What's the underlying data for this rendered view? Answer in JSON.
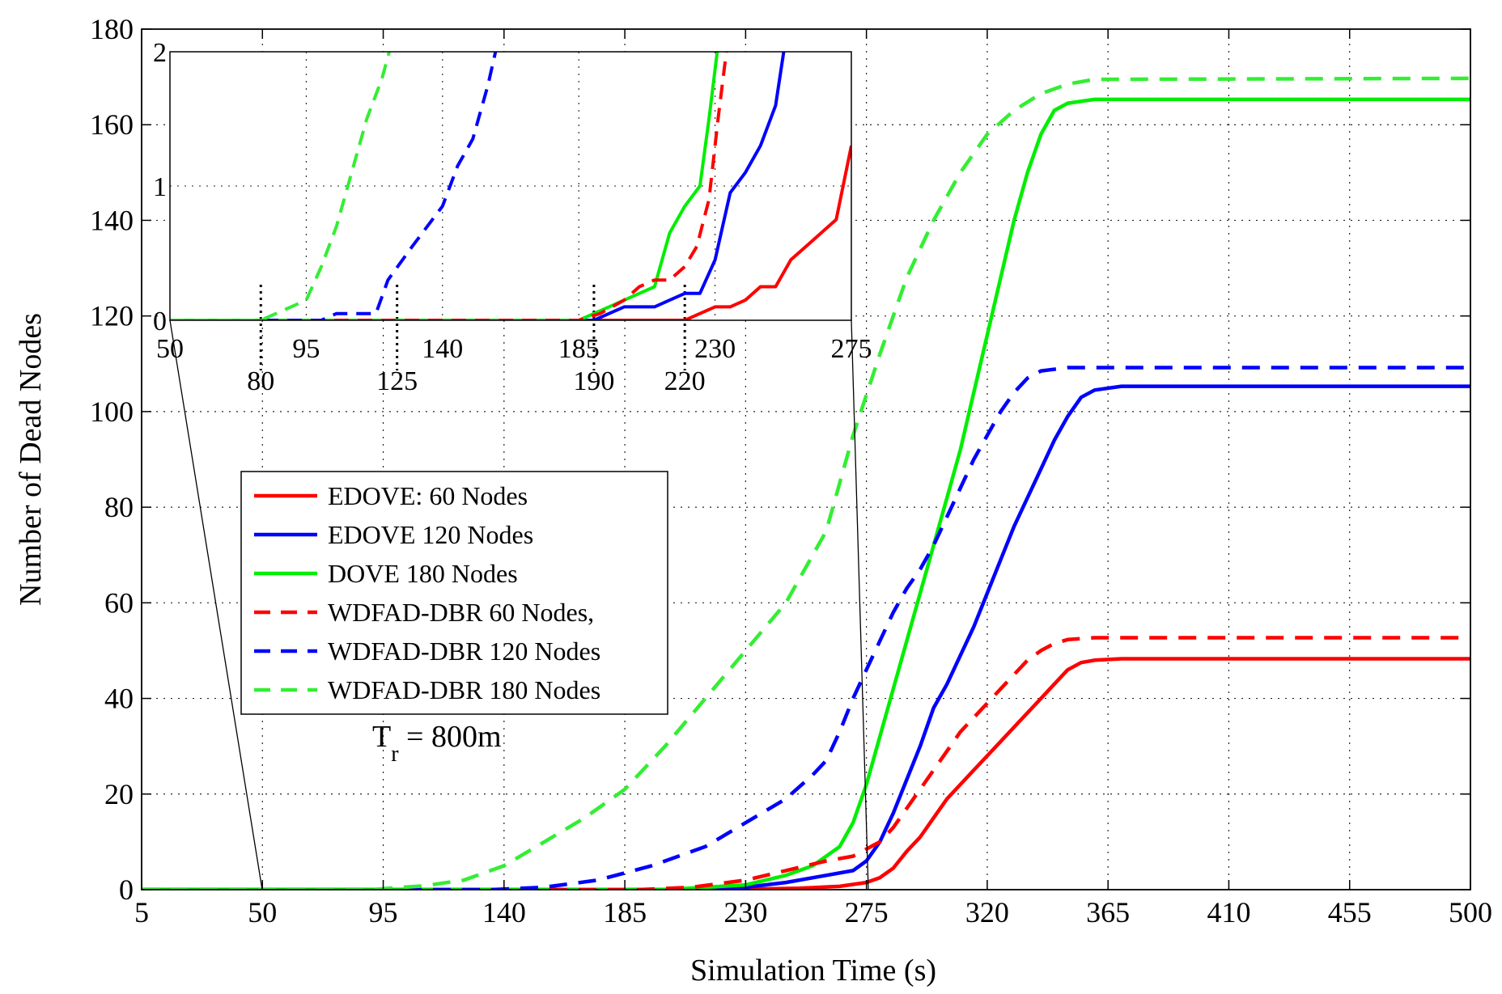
{
  "chart_data": {
    "type": "line",
    "title": "",
    "xlabel": "Simulation Time (s)",
    "ylabel": "Number of Dead Nodes",
    "xlim": [
      5,
      500
    ],
    "ylim": [
      0,
      180
    ],
    "xticks": [
      "5",
      "50",
      "95",
      "140",
      "185",
      "230",
      "275",
      "320",
      "365",
      "410",
      "455",
      "500"
    ],
    "yticks": [
      "0",
      "20",
      "40",
      "60",
      "80",
      "100",
      "120",
      "140",
      "160",
      "180"
    ],
    "grid": true,
    "legend_position": "center-left",
    "annotation": {
      "main": "T",
      "sub": "r",
      "rest": " = 800m"
    },
    "series": [
      {
        "name": "EDOVE: 60 Nodes",
        "color": "#ff0000",
        "dash": "solid",
        "points": [
          [
            5,
            0
          ],
          [
            220,
            0
          ],
          [
            250,
            0.3
          ],
          [
            265,
            0.7
          ],
          [
            275,
            1.5
          ],
          [
            280,
            2.5
          ],
          [
            285,
            4.5
          ],
          [
            290,
            8
          ],
          [
            295,
            11
          ],
          [
            300,
            15
          ],
          [
            305,
            19
          ],
          [
            310,
            22
          ],
          [
            315,
            25
          ],
          [
            320,
            28
          ],
          [
            325,
            31
          ],
          [
            330,
            34
          ],
          [
            335,
            37
          ],
          [
            340,
            40
          ],
          [
            345,
            43
          ],
          [
            350,
            46
          ],
          [
            355,
            47.5
          ],
          [
            360,
            48
          ],
          [
            370,
            48.3
          ],
          [
            500,
            48.3
          ]
        ]
      },
      {
        "name": "EDOVE 120 Nodes",
        "color": "#0000ff",
        "dash": "solid",
        "points": [
          [
            5,
            0
          ],
          [
            215,
            0
          ],
          [
            230,
            0.5
          ],
          [
            245,
            1.5
          ],
          [
            260,
            3
          ],
          [
            270,
            4
          ],
          [
            275,
            6
          ],
          [
            280,
            10
          ],
          [
            285,
            16
          ],
          [
            290,
            23
          ],
          [
            295,
            30
          ],
          [
            300,
            38
          ],
          [
            305,
            43
          ],
          [
            310,
            49
          ],
          [
            315,
            55
          ],
          [
            320,
            62
          ],
          [
            325,
            69
          ],
          [
            330,
            76
          ],
          [
            335,
            82
          ],
          [
            340,
            88
          ],
          [
            345,
            94
          ],
          [
            350,
            99
          ],
          [
            355,
            103
          ],
          [
            360,
            104.5
          ],
          [
            370,
            105.3
          ],
          [
            500,
            105.3
          ]
        ]
      },
      {
        "name": "DOVE 180 Nodes",
        "color": "#00ee00",
        "dash": "solid",
        "points": [
          [
            5,
            0
          ],
          [
            200,
            0
          ],
          [
            230,
            1
          ],
          [
            245,
            3
          ],
          [
            255,
            5
          ],
          [
            265,
            9
          ],
          [
            270,
            14
          ],
          [
            275,
            22
          ],
          [
            280,
            32
          ],
          [
            285,
            42
          ],
          [
            290,
            52
          ],
          [
            295,
            62
          ],
          [
            300,
            72
          ],
          [
            305,
            82
          ],
          [
            310,
            92
          ],
          [
            315,
            104
          ],
          [
            320,
            116
          ],
          [
            325,
            128
          ],
          [
            330,
            140
          ],
          [
            335,
            150
          ],
          [
            340,
            158
          ],
          [
            345,
            163
          ],
          [
            350,
            164.5
          ],
          [
            360,
            165.3
          ],
          [
            500,
            165.3
          ]
        ]
      },
      {
        "name": "WDFAD-DBR 60 Nodes,",
        "color": "#ff0000",
        "dash": "dashed",
        "points": [
          [
            5,
            0
          ],
          [
            190,
            0
          ],
          [
            210,
            0.5
          ],
          [
            230,
            2
          ],
          [
            245,
            4
          ],
          [
            260,
            6
          ],
          [
            270,
            7
          ],
          [
            280,
            10
          ],
          [
            285,
            13
          ],
          [
            290,
            17
          ],
          [
            295,
            21
          ],
          [
            300,
            25
          ],
          [
            305,
            29
          ],
          [
            310,
            33
          ],
          [
            315,
            36
          ],
          [
            320,
            39
          ],
          [
            325,
            42
          ],
          [
            330,
            45
          ],
          [
            335,
            48
          ],
          [
            340,
            50
          ],
          [
            345,
            51.5
          ],
          [
            350,
            52.3
          ],
          [
            360,
            52.7
          ],
          [
            500,
            52.7
          ]
        ]
      },
      {
        "name": "WDFAD-DBR 120 Nodes",
        "color": "#0000ff",
        "dash": "dashed",
        "points": [
          [
            5,
            0
          ],
          [
            135,
            0
          ],
          [
            155,
            0.5
          ],
          [
            175,
            2
          ],
          [
            195,
            5
          ],
          [
            215,
            9
          ],
          [
            230,
            14
          ],
          [
            245,
            19
          ],
          [
            255,
            24
          ],
          [
            260,
            27
          ],
          [
            265,
            33
          ],
          [
            270,
            40
          ],
          [
            275,
            46
          ],
          [
            280,
            52
          ],
          [
            285,
            58
          ],
          [
            290,
            63
          ],
          [
            295,
            67
          ],
          [
            300,
            72
          ],
          [
            305,
            78
          ],
          [
            310,
            84
          ],
          [
            315,
            90
          ],
          [
            320,
            95
          ],
          [
            325,
            100
          ],
          [
            330,
            104
          ],
          [
            335,
            107
          ],
          [
            340,
            108.5
          ],
          [
            350,
            109.2
          ],
          [
            500,
            109.2
          ]
        ]
      },
      {
        "name": "WDFAD-DBR 180 Nodes",
        "color": "#33ee33",
        "dash": "dashed",
        "points": [
          [
            5,
            0
          ],
          [
            90,
            0
          ],
          [
            110,
            0.8
          ],
          [
            125,
            2
          ],
          [
            140,
            5
          ],
          [
            155,
            10
          ],
          [
            170,
            15
          ],
          [
            185,
            21
          ],
          [
            200,
            30
          ],
          [
            215,
            40
          ],
          [
            230,
            50
          ],
          [
            245,
            60
          ],
          [
            260,
            75
          ],
          [
            270,
            95
          ],
          [
            280,
            112
          ],
          [
            290,
            128
          ],
          [
            300,
            140
          ],
          [
            310,
            150
          ],
          [
            320,
            158
          ],
          [
            330,
            163
          ],
          [
            340,
            166.5
          ],
          [
            350,
            168.5
          ],
          [
            360,
            169.5
          ],
          [
            500,
            169.7
          ]
        ]
      }
    ],
    "inset": {
      "xlim": [
        50,
        275
      ],
      "ylim": [
        0,
        2
      ],
      "xticks_top": [
        "50",
        "95",
        "140",
        "185",
        "230",
        "275"
      ],
      "xticks_bottom": [
        "80",
        "125",
        "190",
        "220"
      ],
      "yticks": [
        "0",
        "1",
        "2"
      ],
      "series": [
        {
          "name": "EDOVE: 60 Nodes",
          "points": [
            [
              50,
              0
            ],
            [
              220,
              0
            ],
            [
              225,
              0.05
            ],
            [
              230,
              0.1
            ],
            [
              235,
              0.1
            ],
            [
              240,
              0.15
            ],
            [
              245,
              0.25
            ],
            [
              250,
              0.25
            ],
            [
              255,
              0.45
            ],
            [
              260,
              0.55
            ],
            [
              265,
              0.65
            ],
            [
              270,
              0.75
            ],
            [
              275,
              1.3
            ]
          ]
        },
        {
          "name": "EDOVE 120 Nodes",
          "points": [
            [
              50,
              0
            ],
            [
              190,
              0
            ],
            [
              195,
              0.05
            ],
            [
              200,
              0.1
            ],
            [
              210,
              0.1
            ],
            [
              215,
              0.15
            ],
            [
              220,
              0.2
            ],
            [
              225,
              0.2
            ],
            [
              230,
              0.45
            ],
            [
              235,
              0.95
            ],
            [
              240,
              1.1
            ],
            [
              245,
              1.3
            ],
            [
              250,
              1.6
            ],
            [
              253,
              2.05
            ]
          ]
        },
        {
          "name": "DOVE 180 Nodes",
          "points": [
            [
              50,
              0
            ],
            [
              185,
              0
            ],
            [
              190,
              0.05
            ],
            [
              195,
              0.1
            ],
            [
              200,
              0.15
            ],
            [
              205,
              0.2
            ],
            [
              210,
              0.25
            ],
            [
              215,
              0.65
            ],
            [
              220,
              0.85
            ],
            [
              225,
              1.0
            ],
            [
              228,
              1.5
            ],
            [
              231,
              2.05
            ]
          ]
        },
        {
          "name": "WDFAD-DBR 60 Nodes,",
          "points": [
            [
              50,
              0
            ],
            [
              185,
              0
            ],
            [
              192,
              0.05
            ],
            [
              200,
              0.15
            ],
            [
              205,
              0.25
            ],
            [
              210,
              0.3
            ],
            [
              215,
              0.3
            ],
            [
              220,
              0.4
            ],
            [
              224,
              0.55
            ],
            [
              228,
              0.9
            ],
            [
              231,
              1.5
            ],
            [
              234,
              2.05
            ]
          ]
        },
        {
          "name": "WDFAD-DBR 120 Nodes",
          "points": [
            [
              50,
              0
            ],
            [
              100,
              0
            ],
            [
              105,
              0.05
            ],
            [
              115,
              0.05
            ],
            [
              118,
              0.05
            ],
            [
              122,
              0.3
            ],
            [
              130,
              0.55
            ],
            [
              140,
              0.85
            ],
            [
              145,
              1.15
            ],
            [
              150,
              1.35
            ],
            [
              155,
              1.75
            ],
            [
              158,
              2.05
            ]
          ]
        },
        {
          "name": "WDFAD-DBR 180 Nodes",
          "points": [
            [
              50,
              0
            ],
            [
              80,
              0
            ],
            [
              85,
              0.05
            ],
            [
              90,
              0.1
            ],
            [
              95,
              0.15
            ],
            [
              100,
              0.4
            ],
            [
              105,
              0.7
            ],
            [
              110,
              1.1
            ],
            [
              115,
              1.5
            ],
            [
              120,
              1.8
            ],
            [
              123,
              2.05
            ]
          ]
        }
      ]
    }
  }
}
